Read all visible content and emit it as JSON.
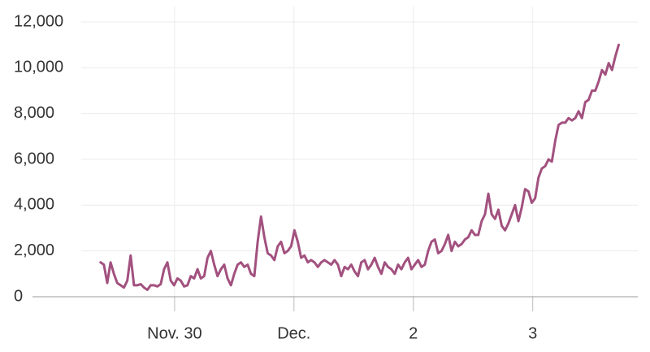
{
  "chart_data": {
    "type": "line",
    "x": [
      -0.62,
      -0.592,
      -0.564,
      -0.536,
      -0.508,
      -0.48,
      -0.452,
      -0.424,
      -0.396,
      -0.368,
      -0.34,
      -0.312,
      -0.284,
      -0.256,
      -0.228,
      -0.2,
      -0.172,
      -0.144,
      -0.116,
      -0.088,
      -0.06,
      -0.032,
      -0.004,
      0.024,
      0.052,
      0.08,
      0.108,
      0.136,
      0.164,
      0.192,
      0.22,
      0.248,
      0.276,
      0.304,
      0.332,
      0.36,
      0.388,
      0.416,
      0.444,
      0.472,
      0.5,
      0.528,
      0.556,
      0.584,
      0.612,
      0.64,
      0.668,
      0.696,
      0.724,
      0.752,
      0.78,
      0.808,
      0.836,
      0.864,
      0.892,
      0.92,
      0.948,
      0.976,
      1.004,
      1.032,
      1.06,
      1.088,
      1.116,
      1.144,
      1.172,
      1.2,
      1.228,
      1.256,
      1.284,
      1.312,
      1.34,
      1.368,
      1.396,
      1.424,
      1.452,
      1.48,
      1.508,
      1.536,
      1.564,
      1.592,
      1.62,
      1.648,
      1.676,
      1.704,
      1.732,
      1.76,
      1.788,
      1.816,
      1.844,
      1.872,
      1.9,
      1.928,
      1.956,
      1.984,
      2.012,
      2.04,
      2.068,
      2.096,
      2.124,
      2.152,
      2.18,
      2.208,
      2.236,
      2.264,
      2.292,
      2.32,
      2.348,
      2.376,
      2.404,
      2.432,
      2.46,
      2.488,
      2.516,
      2.544,
      2.572,
      2.6,
      2.628,
      2.656,
      2.684,
      2.712,
      2.74,
      2.768,
      2.796,
      2.824,
      2.852,
      2.88,
      2.908,
      2.936,
      2.964,
      2.992,
      3.02,
      3.048,
      3.076,
      3.104,
      3.132,
      3.16,
      3.188,
      3.216,
      3.244,
      3.272,
      3.3,
      3.328,
      3.356,
      3.384,
      3.412,
      3.44,
      3.468,
      3.496,
      3.524,
      3.552,
      3.58,
      3.608,
      3.636,
      3.664,
      3.692,
      3.72
    ],
    "series": [
      {
        "color": "#a2517f",
        "values": [
          1500,
          1400,
          600,
          1500,
          1000,
          600,
          500,
          400,
          700,
          1800,
          500,
          500,
          550,
          400,
          300,
          500,
          500,
          450,
          550,
          1200,
          1500,
          700,
          500,
          800,
          700,
          450,
          500,
          900,
          800,
          1200,
          800,
          900,
          1700,
          2000,
          1400,
          900,
          1200,
          1400,
          800,
          500,
          1000,
          1400,
          1500,
          1300,
          1400,
          1000,
          900,
          2400,
          3500,
          2600,
          1900,
          1800,
          1600,
          2200,
          2400,
          1900,
          2000,
          2200,
          2900,
          2400,
          1700,
          1800,
          1500,
          1600,
          1500,
          1300,
          1500,
          1600,
          1500,
          1400,
          1600,
          1400,
          900,
          1300,
          1200,
          1400,
          1100,
          900,
          1500,
          1600,
          1200,
          1400,
          1700,
          1300,
          1000,
          1500,
          1300,
          1200,
          1000,
          1400,
          1200,
          1500,
          1700,
          1200,
          1400,
          1600,
          1300,
          1400,
          2000,
          2400,
          2500,
          1900,
          2000,
          2300,
          2700,
          2000,
          2400,
          2200,
          2300,
          2500,
          2600,
          2900,
          2700,
          2700,
          3300,
          3600,
          4500,
          3600,
          3400,
          3800,
          3100,
          2900,
          3200,
          3600,
          4000,
          3300,
          3900,
          4700,
          4600,
          4100,
          4300,
          5200,
          5600,
          5700,
          6000,
          5900,
          6800,
          7500,
          7600,
          7600,
          7800,
          7700,
          7800,
          8100,
          7800,
          8500,
          8600,
          9000,
          9000,
          9400,
          9900,
          9700,
          10200,
          9900,
          10500,
          11000
        ]
      }
    ],
    "xlim": [
      -1.19,
      3.88
    ],
    "xticks": [
      {
        "value": 0,
        "label": "Nov. 30"
      },
      {
        "value": 1,
        "label": "Dec."
      },
      2,
      3
    ],
    "ylim": [
      0,
      12000
    ],
    "yticks": [
      0,
      {
        "value": 2000,
        "label": "2,000"
      },
      {
        "value": 4000,
        "label": "4,000"
      },
      {
        "value": 6000,
        "label": "6,000"
      },
      {
        "value": 8000,
        "label": "8,000"
      },
      {
        "value": 10000,
        "label": "10,000"
      },
      {
        "value": 12000,
        "label": "12,000"
      }
    ],
    "grid": true
  }
}
